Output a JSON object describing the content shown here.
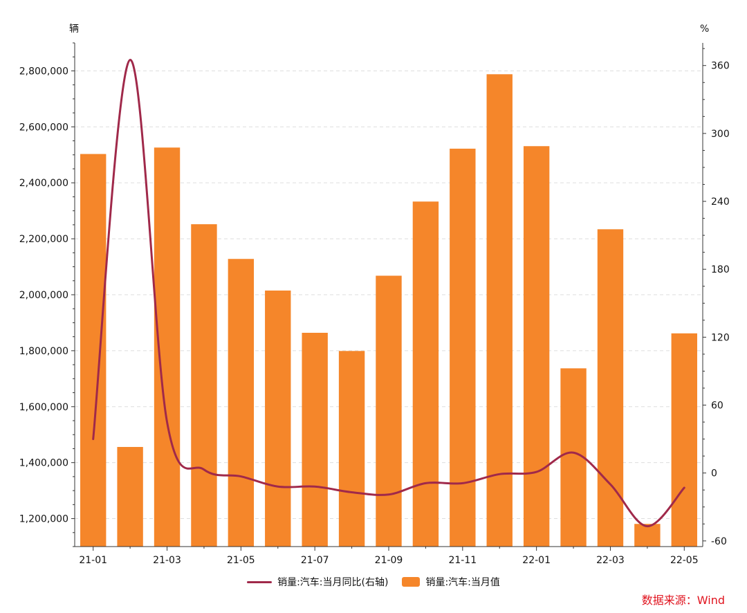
{
  "colors": {
    "bar": "#f5862a",
    "line": "#a0294a",
    "axis": "#333333",
    "grid": "#dddddd",
    "source": "#e0131e"
  },
  "chart_data": {
    "type": "bar",
    "categories": [
      "21-01",
      "21-02",
      "21-03",
      "21-04",
      "21-05",
      "21-06",
      "21-07",
      "21-08",
      "21-09",
      "21-10",
      "21-11",
      "21-12",
      "22-01",
      "22-02",
      "22-03",
      "22-04",
      "22-05"
    ],
    "x_tick_labels": [
      "21-01",
      "21-03",
      "21-05",
      "21-07",
      "21-09",
      "21-11",
      "22-01",
      "22-03",
      "22-05"
    ],
    "y_left": {
      "unit": "辆",
      "range": [
        1100000,
        2900000
      ],
      "ticks": [
        1200000,
        1400000,
        1600000,
        1800000,
        2000000,
        2200000,
        2400000,
        2600000,
        2800000
      ],
      "tick_labels": [
        "1,200,000",
        "1,400,000",
        "1,600,000",
        "1,800,000",
        "2,000,000",
        "2,200,000",
        "2,400,000",
        "2,600,000",
        "2,800,000"
      ]
    },
    "y_right": {
      "unit": "%",
      "range": [
        -65,
        380
      ],
      "ticks": [
        -60,
        0,
        60,
        120,
        180,
        240,
        300,
        360
      ],
      "tick_labels": [
        "-60",
        "0",
        "60",
        "120",
        "180",
        "240",
        "300",
        "360"
      ]
    },
    "grid": "dashed-horizontal",
    "legend_position": "bottom-center",
    "series": [
      {
        "name": "销量:汽车:当月同比(右轴)",
        "type": "line",
        "axis": "right",
        "values": [
          30,
          365,
          45,
          3,
          -3,
          -12,
          -12,
          -17,
          -19,
          -9,
          -9,
          -1,
          1,
          18,
          -10,
          -47,
          -13
        ]
      },
      {
        "name": "销量:汽车:当月值",
        "type": "bar",
        "axis": "left",
        "values": [
          2503000,
          1456000,
          2526000,
          2252000,
          2128000,
          2015000,
          1864000,
          1799000,
          2068000,
          2333000,
          2522000,
          2788000,
          2531000,
          1737000,
          2234000,
          1181000,
          1862000
        ]
      }
    ]
  },
  "source": "数据来源：Wind"
}
